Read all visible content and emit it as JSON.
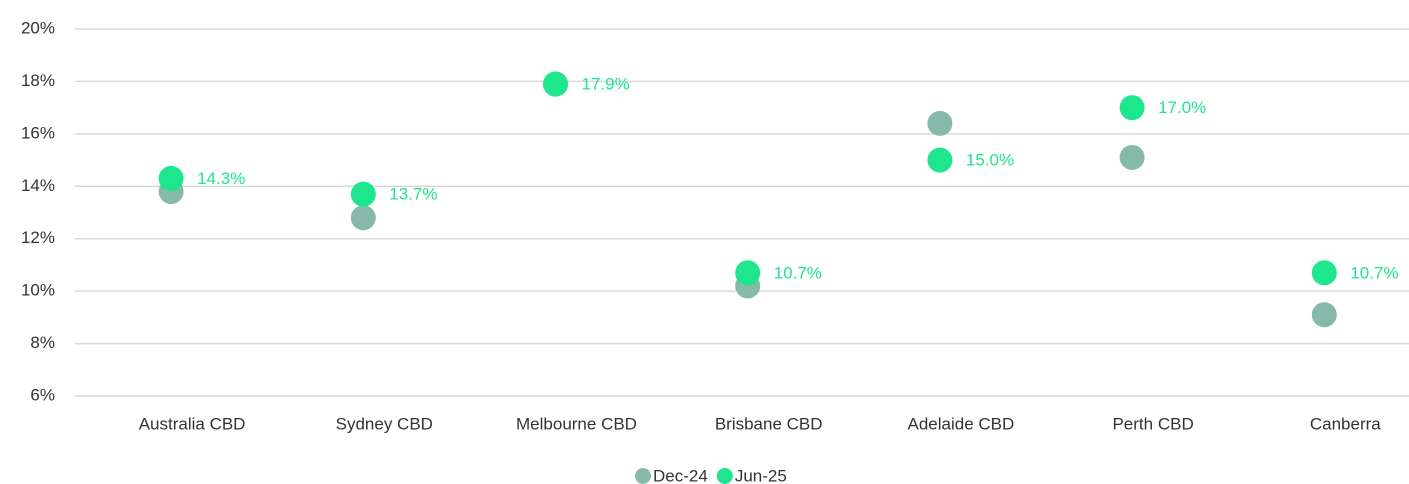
{
  "chart_data": {
    "type": "dot",
    "categories": [
      "Australia CBD",
      "Sydney CBD",
      "Melbourne CBD",
      "Brisbane CBD",
      "Adelaide CBD",
      "Perth CBD",
      "Canberra"
    ],
    "series": [
      {
        "name": "Dec-24",
        "color": "#86b9a9",
        "values": [
          13.8,
          12.8,
          17.9,
          10.2,
          16.4,
          15.1,
          9.1
        ]
      },
      {
        "name": "Jun-25",
        "color": "#1de68d",
        "values": [
          14.3,
          13.7,
          17.9,
          10.7,
          15.0,
          17.0,
          10.7
        ],
        "value_labels": [
          "14.3%",
          "13.7%",
          "17.9%",
          "10.7%",
          "15.0%",
          "17.0%",
          "10.7%"
        ]
      }
    ],
    "ylim": [
      6,
      20
    ],
    "yticks": [
      {
        "value": 6,
        "label": "6%"
      },
      {
        "value": 8,
        "label": "8%"
      },
      {
        "value": 10,
        "label": "10%"
      },
      {
        "value": 12,
        "label": "12%"
      },
      {
        "value": 14,
        "label": "14%"
      },
      {
        "value": 16,
        "label": "16%"
      },
      {
        "value": 18,
        "label": "18%"
      },
      {
        "value": 20,
        "label": "20%"
      }
    ],
    "grid": true,
    "legend": "bottom"
  }
}
